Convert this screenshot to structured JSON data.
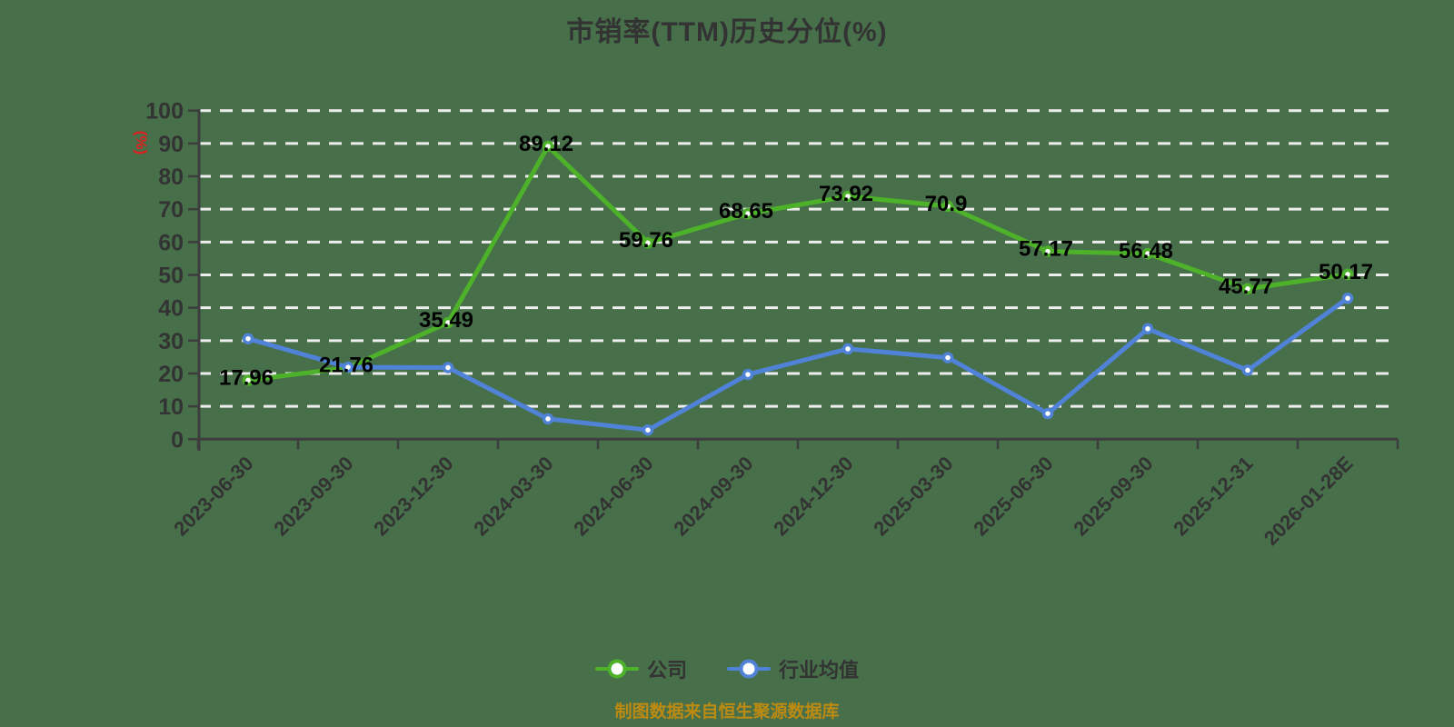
{
  "title": "市销率(TTM)历史分位(%)",
  "y_axis": {
    "unit_label": "(%)",
    "tick_interval": 10
  },
  "legend": {
    "items": [
      {
        "label": "公司",
        "color": "#4db229"
      },
      {
        "label": "行业均值",
        "color": "#5082d7"
      }
    ]
  },
  "source_note": "制图数据来自恒生聚源数据库",
  "colors": {
    "background": "#47704a",
    "title_text": "#333333",
    "axis_line": "#3d3d3d",
    "grid_line": "#ededed",
    "tick_text": "#333333",
    "value_label_text": "#000000",
    "unit_label_red": "#dd1f1f",
    "source_text": "#bd8a12",
    "marker_fill": "#ffffff"
  },
  "chart_data": {
    "type": "line",
    "title": "市销率(TTM)历史分位(%)",
    "xlabel": "",
    "ylabel": "(%)",
    "ylim": [
      0,
      100
    ],
    "y_tick_interval": 10,
    "grid": "dashed-horizontal",
    "legend_position": "bottom",
    "categories": [
      "2023-06-30",
      "2023-09-30",
      "2023-12-30",
      "2024-03-30",
      "2024-06-30",
      "2024-09-30",
      "2024-12-30",
      "2025-03-30",
      "2025-06-30",
      "2025-09-30",
      "2025-12-31",
      "2026-01-28E"
    ],
    "series": [
      {
        "name": "公司",
        "color": "#4db229",
        "labeled": true,
        "values": [
          17.96,
          21.76,
          35.49,
          89.12,
          59.76,
          68.65,
          73.92,
          70.9,
          57.17,
          56.48,
          45.77,
          50.17
        ]
      },
      {
        "name": "行业均值",
        "color": "#5082d7",
        "labeled": false,
        "values": [
          30.6,
          21.9,
          21.8,
          6.2,
          2.8,
          19.7,
          27.5,
          24.8,
          7.8,
          33.6,
          21.0,
          42.9
        ]
      }
    ]
  }
}
